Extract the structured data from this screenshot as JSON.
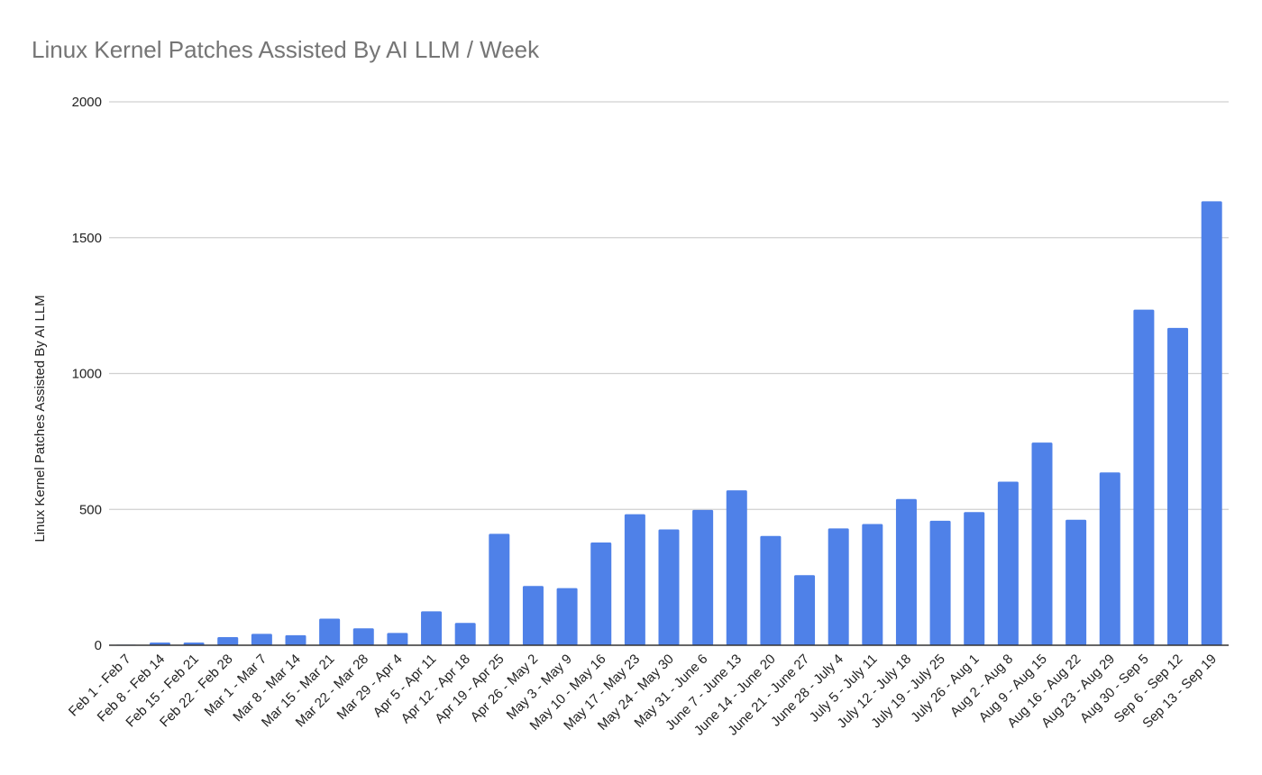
{
  "chart_data": {
    "type": "bar",
    "title": "Linux Kernel Patches Assisted By AI LLM / Week",
    "xlabel": "",
    "ylabel": "Linux Kernel Patches Assisted By AI LLM",
    "ylim": [
      0,
      2000
    ],
    "yticks": [
      "0",
      "500",
      "1000",
      "1500",
      "2000"
    ],
    "grid": true,
    "legend": "none",
    "bar_color": "#4F81E8",
    "categories": [
      "Feb 1 - Feb 7",
      "Feb 8 - Feb 14",
      "Feb 15 - Feb 21",
      "Feb 22 - Feb 28",
      "Mar 1 - Mar 7",
      "Mar 8 - Mar 14",
      "Mar 15 - Mar 21",
      "Mar 22 - Mar 28",
      "Mar 29 - Apr 4",
      "Apr 5 - Apr 11",
      "Apr 12 - Apr 18",
      "Apr 19 - Apr 25",
      "Apr 26 - May 2",
      "May 3 - May 9",
      "May 10 - May 16",
      "May 17 - May 23",
      "May 24 - May 30",
      "May 31 - June 6",
      "June 7 - June 13",
      "June 14 - June 20",
      "June 21 - June 27",
      "June 28 - July 4",
      "July 5 - July 11",
      "July 12 - July 18",
      "July 19 - July 25",
      "July 26 - Aug 1",
      "Aug 2 - Aug 8",
      "Aug 9 - Aug 15",
      "Aug 16 - Aug 22",
      "Aug 23 - Aug 29",
      "Aug 30 - Sep 5",
      "Sep 6 - Sep 12",
      "Sep 13 - Sep 19"
    ],
    "values": [
      2,
      10,
      10,
      30,
      42,
      37,
      98,
      62,
      45,
      125,
      82,
      410,
      218,
      210,
      378,
      482,
      426,
      498,
      570,
      402,
      258,
      430,
      446,
      538,
      458,
      490,
      602,
      746,
      462,
      636,
      1235,
      1168,
      1634
    ]
  }
}
